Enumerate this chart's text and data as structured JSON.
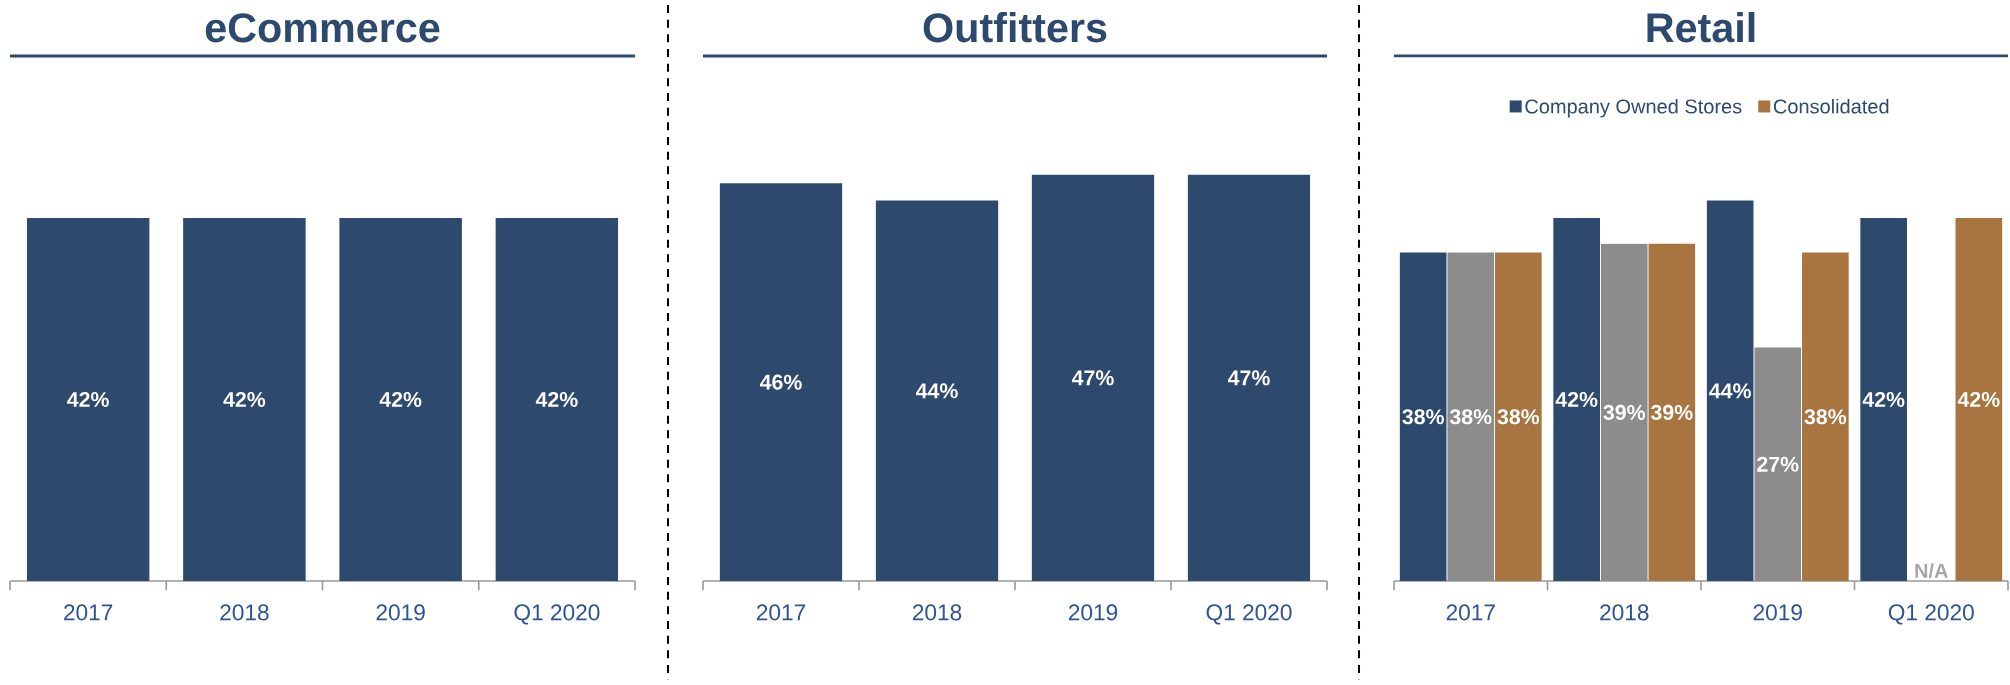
{
  "chart_data": [
    {
      "type": "bar",
      "title": "eCommerce",
      "categories": [
        "2017",
        "2018",
        "2019",
        "Q1 2020"
      ],
      "values": [
        42,
        42,
        42,
        42
      ],
      "value_labels": [
        "42%",
        "42%",
        "42%",
        "42%"
      ],
      "color": "#2d4a6e",
      "tick_labels": "x"
    },
    {
      "type": "bar",
      "title": "Outfitters",
      "categories": [
        "2017",
        "2018",
        "2019",
        "Q1 2020"
      ],
      "values": [
        46,
        44,
        47,
        47
      ],
      "value_labels": [
        "46%",
        "44%",
        "47%",
        "47%"
      ],
      "color": "#2d4a6e",
      "tick_labels": "x"
    },
    {
      "type": "bar",
      "title": "Retail",
      "categories": [
        "2017",
        "2018",
        "2019",
        "Q1 2020"
      ],
      "legend": "top",
      "tick_labels": "x",
      "series": [
        {
          "name": "Company Owned Stores",
          "color": "#2d4a6e",
          "values": [
            38,
            42,
            44,
            42
          ],
          "value_labels": [
            "38%",
            "42%",
            "44%",
            "42%"
          ]
        },
        {
          "color": "#8c8c8c",
          "values": [
            38,
            39,
            27,
            null
          ],
          "value_labels": [
            "38%",
            "39%",
            "27%",
            "N/A"
          ]
        },
        {
          "name": "Consolidated",
          "color": "#a87540",
          "values": [
            38,
            39,
            38,
            42
          ],
          "value_labels": [
            "38%",
            "39%",
            "38%",
            "42%"
          ]
        }
      ]
    }
  ]
}
